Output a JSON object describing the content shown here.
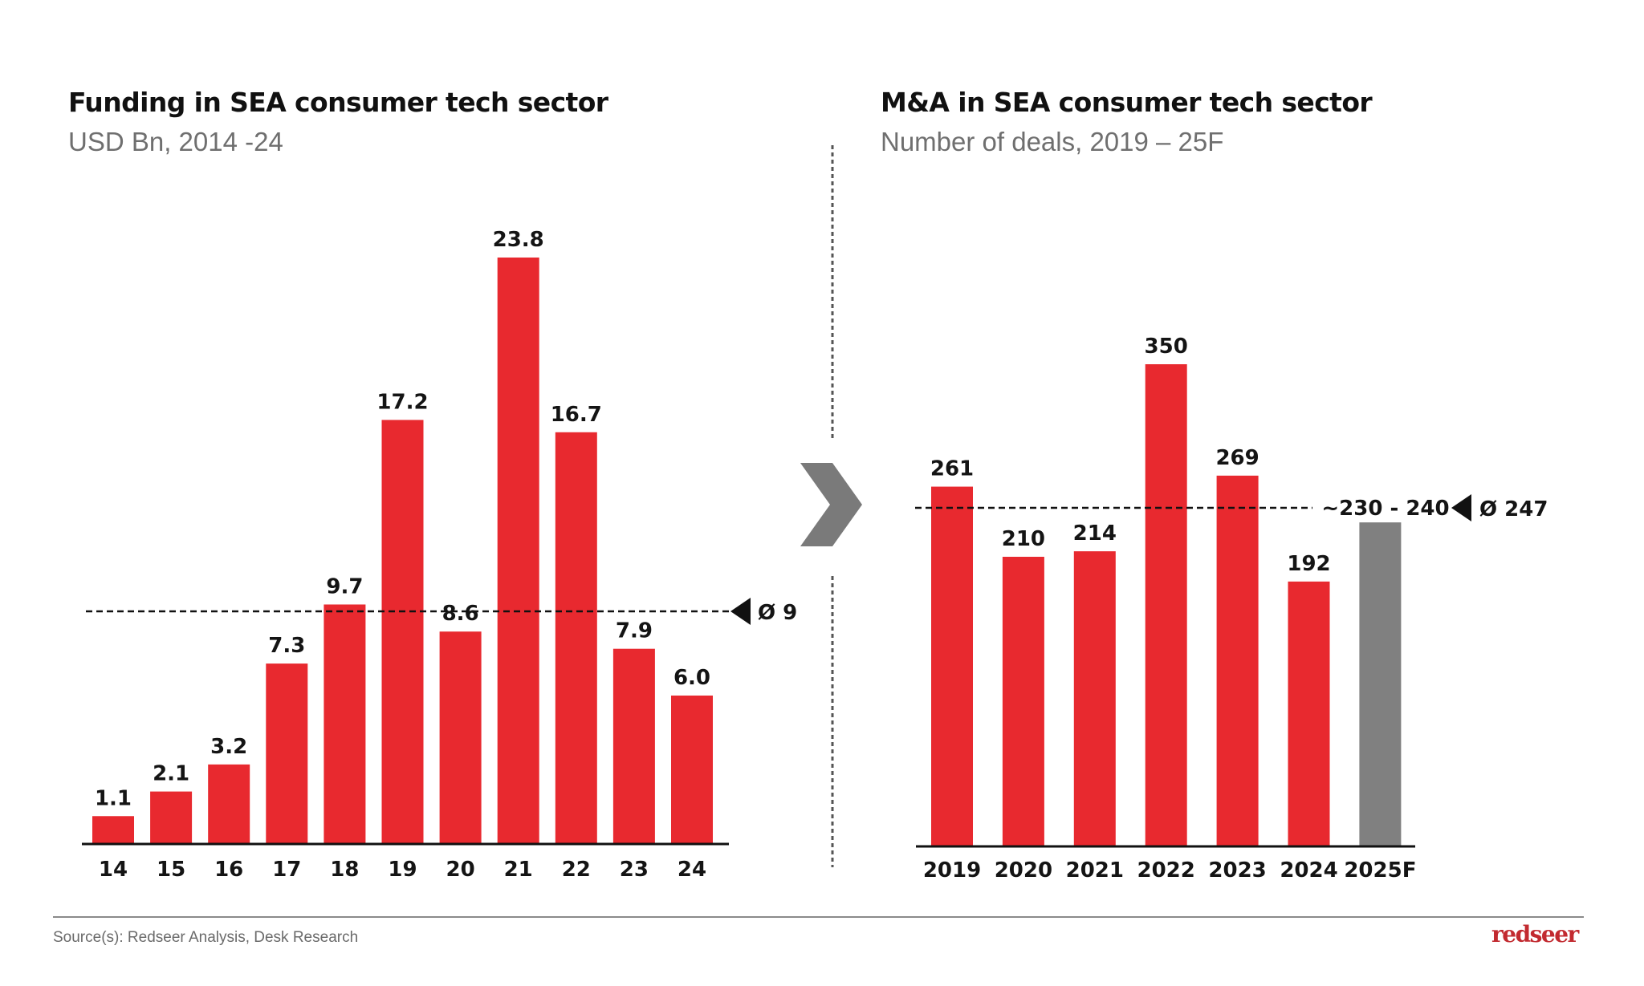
{
  "colors": {
    "bar": "#E8292F",
    "forecast_bar": "#808080",
    "text": "#141414",
    "divider": "#555555",
    "chevron": "#7a7a7a",
    "subtitle": "#6f6f6f",
    "logo": "#C22A30"
  },
  "left": {
    "title": "Funding in SEA consumer tech sector",
    "subtitle": "USD Bn, 2014 -24"
  },
  "right": {
    "title": "M&A in SEA consumer tech sector",
    "subtitle": "Number of deals, 2019 – 25F"
  },
  "footer": {
    "source": "Source(s): Redseer Analysis, Desk Research",
    "logo": "redseer"
  },
  "arrow_icon": "chevron-right-icon",
  "chart_data": [
    {
      "type": "bar",
      "title": "Funding in SEA consumer tech sector",
      "subtitle": "USD Bn, 2014 -24",
      "xlabel": "",
      "ylabel": "USD Bn",
      "categories": [
        "14",
        "15",
        "16",
        "17",
        "18",
        "19",
        "20",
        "21",
        "22",
        "23",
        "24"
      ],
      "values": [
        1.1,
        2.1,
        3.2,
        7.3,
        9.7,
        17.2,
        8.6,
        23.8,
        16.7,
        7.9,
        6.0
      ],
      "labels": [
        "1.1",
        "2.1",
        "3.2",
        "7.3",
        "9.7",
        "17.2",
        "8.6",
        "23.8",
        "16.7",
        "7.9",
        "6.0"
      ],
      "ylim": [
        0,
        23.8
      ],
      "grid": false,
      "average": {
        "value": 9,
        "label": "Ø 9"
      }
    },
    {
      "type": "bar",
      "title": "M&A in SEA consumer tech sector",
      "subtitle": "Number of deals, 2019 – 25F",
      "xlabel": "",
      "ylabel": "Number of deals",
      "categories": [
        "2019",
        "2020",
        "2021",
        "2022",
        "2023",
        "2024",
        "2025F"
      ],
      "values": [
        261,
        210,
        214,
        350,
        269,
        192,
        235
      ],
      "labels": [
        "261",
        "210",
        "214",
        "350",
        "269",
        "192",
        "~230 - 240"
      ],
      "forecast": [
        false,
        false,
        false,
        false,
        false,
        false,
        true
      ],
      "ylim": [
        0,
        350
      ],
      "grid": false,
      "average": {
        "value": 247,
        "label": "Ø 247"
      }
    }
  ]
}
